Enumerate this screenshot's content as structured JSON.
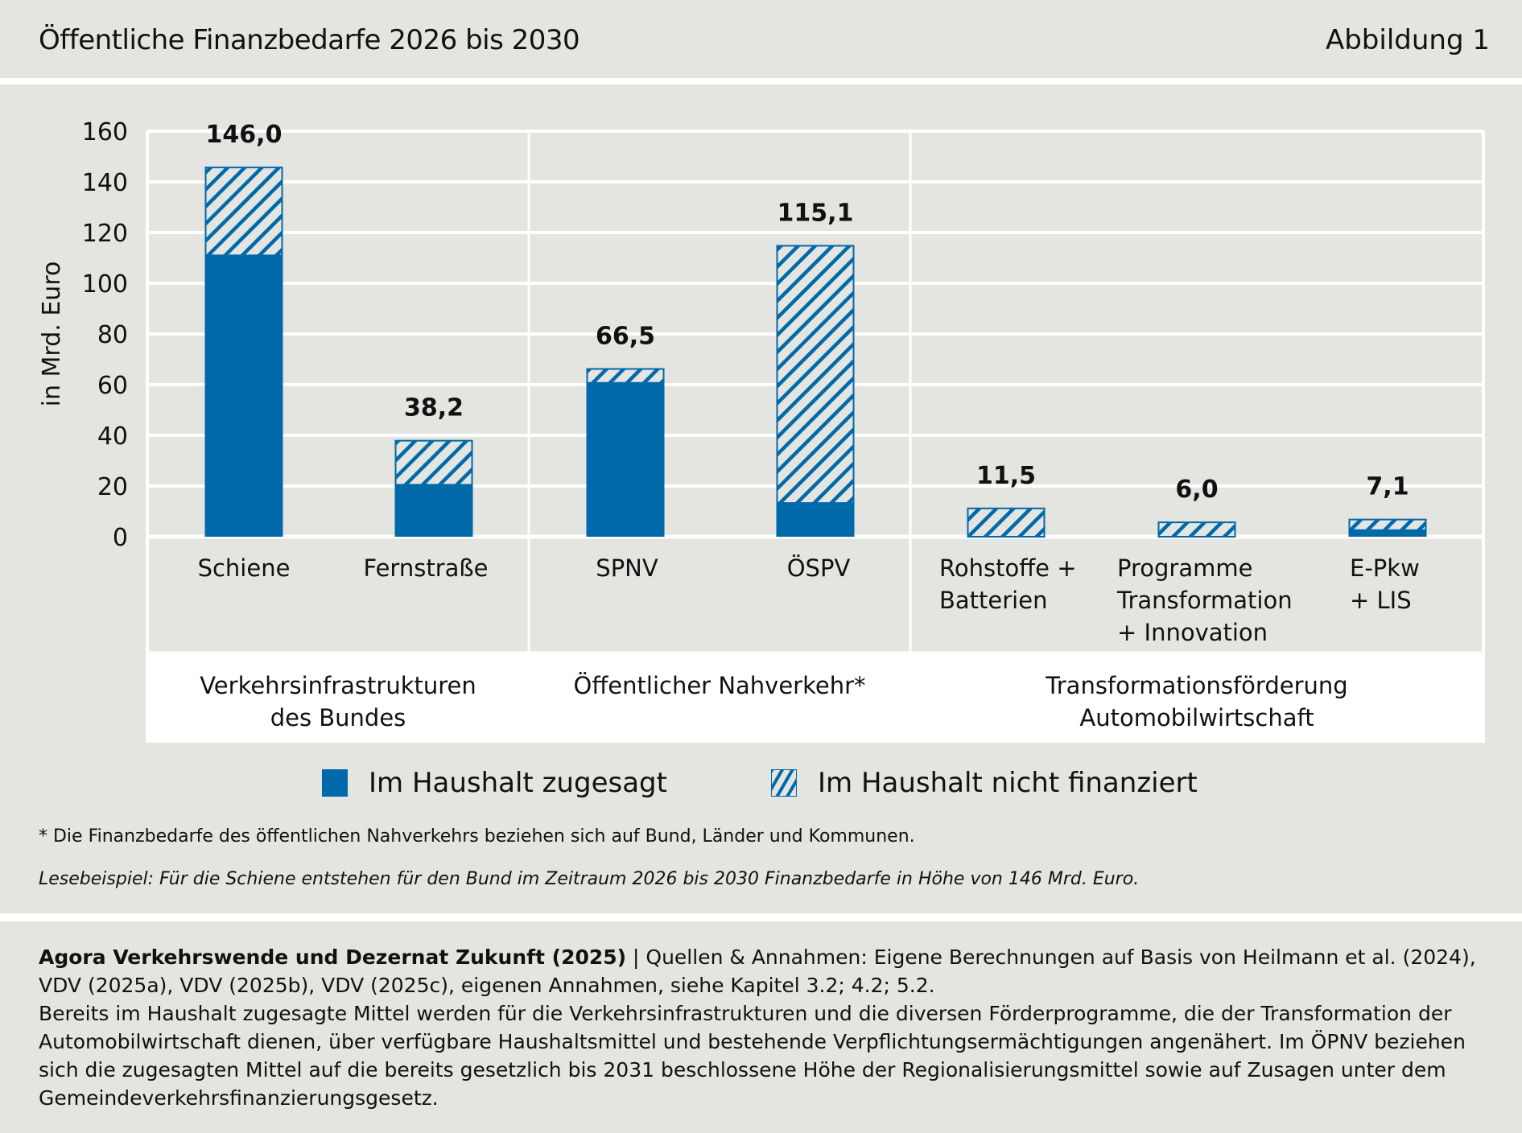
{
  "header": {
    "title": "Öffentliche Finanzbedarfe 2026 bis 2030",
    "figure_label": "Abbildung 1"
  },
  "colors": {
    "background": "#e4e4e0",
    "bar_blue": "#0069aa",
    "grid": "#ffffff",
    "text": "#111111"
  },
  "chart_data": {
    "type": "bar",
    "stacked": true,
    "title": "Öffentliche Finanzbedarfe 2026 bis 2030",
    "xlabel": "",
    "ylabel": "in Mrd. Euro",
    "ylim": [
      0,
      160
    ],
    "yticks": [
      0,
      20,
      40,
      60,
      80,
      100,
      120,
      140,
      160
    ],
    "ytick_labels": [
      "0",
      "20",
      "40",
      "60",
      "80",
      "100",
      "120",
      "140",
      "160"
    ],
    "grid": true,
    "categories": [
      [
        "Schiene"
      ],
      [
        "Fernstraße"
      ],
      [
        "SPNV"
      ],
      [
        "ÖSPV"
      ],
      [
        "Rohstoffe +",
        "Batterien"
      ],
      [
        "Programme",
        "Transformation",
        "+ Innovation"
      ],
      [
        "E-Pkw",
        "+ LIS"
      ]
    ],
    "groups": [
      {
        "label": [
          "Verkehrsinfrastrukturen",
          "des Bundes"
        ],
        "categories": [
          0,
          1
        ]
      },
      {
        "label": [
          "Öffentlicher Nahverkehr*"
        ],
        "categories": [
          2,
          3
        ]
      },
      {
        "label": [
          "Transformationsförderung",
          "Automobilwirtschaft"
        ],
        "categories": [
          4,
          5,
          6
        ]
      }
    ],
    "series": [
      {
        "name": "Im Haushalt zugesagt",
        "pattern": "solid",
        "values": [
          111.0,
          20.5,
          60.7,
          13.3,
          0,
          0,
          2.6
        ]
      },
      {
        "name": "Im Haushalt nicht finanziert",
        "pattern": "hatched",
        "values": [
          35.0,
          17.7,
          5.8,
          101.8,
          11.5,
          6.0,
          4.5
        ]
      }
    ],
    "totals": [
      146.0,
      38.2,
      66.5,
      115.1,
      11.5,
      6.0,
      7.1
    ],
    "total_labels": [
      "146,0",
      "38,2",
      "66,5",
      "115,1",
      "11,5",
      "6,0",
      "7,1"
    ],
    "legend": {
      "placement": "bottom",
      "entries": [
        "Im Haushalt zugesagt",
        "Im Haushalt nicht finanziert"
      ]
    }
  },
  "notes": {
    "footnote": "* Die Finanzbedarfe des öffentlichen Nahverkehrs beziehen sich auf Bund, Länder und Kommunen.",
    "reading_example": "Lesebeispiel: Für die Schiene entstehen für den Bund im Zeitraum 2026 bis 2030 Finanzbedarfe in Höhe von 146 Mrd. Euro."
  },
  "source": {
    "author": "Agora Verkehrswende und Dezernat Zukunft (2025)",
    "separator": " | ",
    "sources": "Quellen & Annahmen: Eigene Berechnungen auf Basis von Heilmann et al. (2024), VDV (2025a), VDV (2025b), VDV (2025c), eigenen Annahmen, siehe Kapitel 3.2; 4.2; 5.2.",
    "explanation": "Bereits im Haushalt zugesagte Mittel werden für die Verkehrsinfrastrukturen und die diversen Förderprogramme, die der Transformation der Automobilwirtschaft dienen, über verfügbare Haushaltsmittel und bestehende Verpflichtungsermächtigungen angenähert. Im ÖPNV beziehen sich die zugesagten Mittel auf die bereits gesetzlich bis 2031 beschlossene Höhe der Regionalisierungsmittel sowie auf Zusagen unter dem Gemeindeverkehrsfinanzierungsgesetz."
  }
}
